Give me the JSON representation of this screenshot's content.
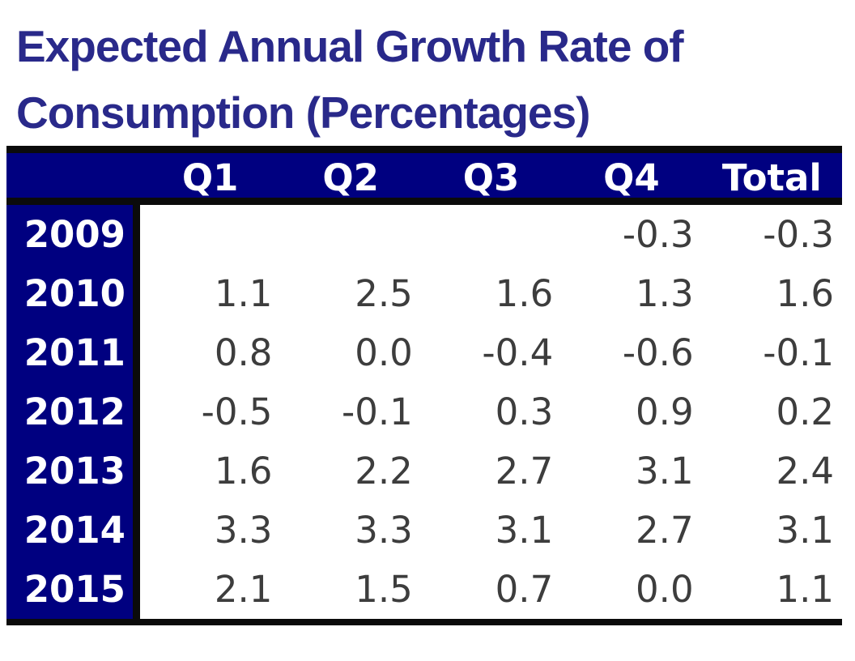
{
  "title": {
    "lines": [
      "Expected Annual Growth Rate of",
      "Consumption (Percentages)"
    ]
  },
  "colors": {
    "header_bg": "#000080",
    "title_text": "#29298a",
    "header_text": "#ffffff",
    "data_text": "#3d3d3d",
    "border": "#0b0b0b"
  },
  "table": {
    "columns": [
      "",
      "Q1",
      "Q2",
      "Q3",
      "Q4",
      "Total"
    ],
    "rows": [
      {
        "year": "2009",
        "values": [
          "",
          "",
          "",
          "-0.3",
          "-0.3"
        ]
      },
      {
        "year": "2010",
        "values": [
          "1.1",
          "2.5",
          "1.6",
          "1.3",
          "1.6"
        ]
      },
      {
        "year": "2011",
        "values": [
          "0.8",
          "0.0",
          "-0.4",
          "-0.6",
          "-0.1"
        ]
      },
      {
        "year": "2012",
        "values": [
          "-0.5",
          "-0.1",
          "0.3",
          "0.9",
          "0.2"
        ]
      },
      {
        "year": "2013",
        "values": [
          "1.6",
          "2.2",
          "2.7",
          "3.1",
          "2.4"
        ]
      },
      {
        "year": "2014",
        "values": [
          "3.3",
          "3.3",
          "3.1",
          "2.7",
          "3.1"
        ]
      },
      {
        "year": "2015",
        "values": [
          "2.1",
          "1.5",
          "0.7",
          "0.0",
          "1.1"
        ]
      }
    ]
  },
  "chart_data": {
    "type": "table",
    "title": "Expected Annual Growth Rate of Consumption (Percentages)",
    "columns": [
      "Q1",
      "Q2",
      "Q3",
      "Q4",
      "Total"
    ],
    "row_labels": [
      "2009",
      "2010",
      "2011",
      "2012",
      "2013",
      "2014",
      "2015"
    ],
    "rows": [
      [
        null,
        null,
        null,
        -0.3,
        -0.3
      ],
      [
        1.1,
        2.5,
        1.6,
        1.3,
        1.6
      ],
      [
        0.8,
        0.0,
        -0.4,
        -0.6,
        -0.1
      ],
      [
        -0.5,
        -0.1,
        0.3,
        0.9,
        0.2
      ],
      [
        1.6,
        2.2,
        2.7,
        3.1,
        2.4
      ],
      [
        3.3,
        3.3,
        3.1,
        2.7,
        3.1
      ],
      [
        2.1,
        1.5,
        0.7,
        0.0,
        1.1
      ]
    ],
    "units": "percent"
  }
}
